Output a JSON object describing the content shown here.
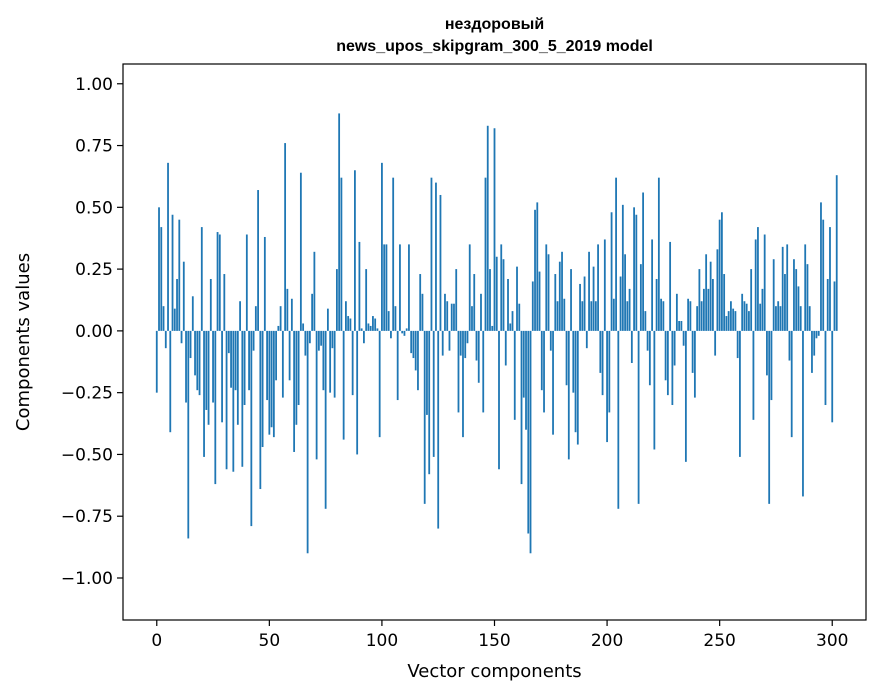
{
  "chart_data": {
    "type": "bar",
    "title_line1": "нездоровый",
    "title_line2": "news_upos_skipgram_300_5_2019 model",
    "xlabel": "Vector components",
    "ylabel": "Components values",
    "xlim": [
      -15,
      315
    ],
    "ylim": [
      -1.17,
      1.08
    ],
    "xticks": [
      0,
      50,
      100,
      150,
      200,
      250,
      300
    ],
    "yticks": [
      -1.0,
      -0.75,
      -0.5,
      -0.25,
      0.0,
      0.25,
      0.5,
      0.75,
      1.0
    ],
    "ytick_labels": [
      "−1.00",
      "−0.75",
      "−0.50",
      "−0.25",
      "0.00",
      "0.25",
      "0.50",
      "0.75",
      "1.00"
    ],
    "bar_color": "#1f77b4",
    "grid": false,
    "values": [
      -0.25,
      0.5,
      0.42,
      0.1,
      -0.07,
      0.68,
      -0.41,
      0.47,
      0.09,
      0.21,
      0.45,
      -0.05,
      0.28,
      -0.29,
      -0.84,
      -0.11,
      0.14,
      -0.18,
      -0.24,
      -0.26,
      0.42,
      -0.51,
      -0.32,
      -0.38,
      0.21,
      -0.29,
      -0.62,
      0.4,
      0.39,
      -0.37,
      0.23,
      -0.56,
      -0.09,
      -0.23,
      -0.57,
      -0.24,
      -0.38,
      0.12,
      -0.55,
      -0.3,
      0.39,
      -0.24,
      -0.79,
      -0.08,
      0.1,
      0.57,
      -0.64,
      -0.47,
      0.38,
      -0.28,
      -0.42,
      -0.39,
      -0.43,
      -0.2,
      0.02,
      0.1,
      -0.27,
      0.76,
      0.17,
      -0.2,
      0.13,
      -0.49,
      -0.38,
      -0.3,
      0.64,
      0.03,
      -0.1,
      -0.9,
      -0.05,
      0.15,
      0.32,
      -0.52,
      -0.08,
      -0.06,
      -0.24,
      -0.72,
      0.09,
      -0.25,
      -0.07,
      -0.27,
      0.25,
      0.88,
      0.62,
      -0.44,
      0.12,
      0.06,
      0.05,
      -0.26,
      0.65,
      -0.5,
      0.36,
      0.01,
      -0.05,
      0.25,
      0.03,
      0.02,
      0.06,
      0.05,
      0.01,
      -0.43,
      0.68,
      0.35,
      0.35,
      0.08,
      -0.03,
      0.62,
      0.1,
      -0.28,
      0.35,
      -0.01,
      -0.02,
      0.01,
      0.35,
      -0.09,
      -0.11,
      -0.16,
      -0.24,
      0.23,
      0.15,
      -0.7,
      -0.34,
      -0.58,
      0.62,
      -0.51,
      0.6,
      -0.8,
      0.55,
      -0.1,
      0.15,
      0.12,
      -0.08,
      0.11,
      0.11,
      0.25,
      -0.33,
      -0.1,
      -0.43,
      -0.11,
      -0.05,
      0.35,
      0.1,
      0.23,
      -0.12,
      -0.21,
      0.15,
      -0.33,
      0.62,
      0.83,
      0.25,
      0.02,
      0.82,
      0.3,
      -0.56,
      0.35,
      0.29,
      -0.14,
      0.21,
      0.03,
      0.08,
      -0.36,
      0.26,
      0.11,
      -0.62,
      -0.27,
      -0.4,
      -0.82,
      -0.9,
      0.2,
      0.49,
      0.52,
      0.24,
      -0.24,
      -0.33,
      0.35,
      0.31,
      -0.08,
      -0.42,
      0.23,
      0.12,
      0.28,
      0.32,
      0.13,
      -0.22,
      -0.52,
      0.25,
      -0.25,
      -0.41,
      -0.46,
      0.19,
      0.12,
      0.22,
      -0.07,
      0.32,
      0.12,
      0.26,
      0.12,
      0.35,
      -0.17,
      -0.26,
      0.37,
      -0.45,
      -0.33,
      0.48,
      0.13,
      0.62,
      -0.72,
      0.22,
      0.51,
      0.31,
      0.12,
      0.17,
      -0.13,
      0.5,
      0.47,
      -0.7,
      0.27,
      0.56,
      0.08,
      -0.08,
      -0.22,
      0.37,
      -0.48,
      0.21,
      0.62,
      0.13,
      0.12,
      -0.2,
      -0.26,
      0.36,
      -0.3,
      -0.14,
      0.15,
      0.04,
      0.04,
      -0.06,
      -0.53,
      0.13,
      0.12,
      -0.17,
      -0.27,
      0.1,
      0.25,
      0.12,
      0.17,
      0.31,
      0.17,
      0.28,
      0.21,
      -0.1,
      0.33,
      0.45,
      0.48,
      0.23,
      0.06,
      0.08,
      0.12,
      0.09,
      0.08,
      -0.11,
      -0.51,
      0.15,
      0.12,
      0.11,
      0.08,
      0.25,
      -0.36,
      0.37,
      0.42,
      0.11,
      0.17,
      0.39,
      -0.18,
      -0.7,
      -0.28,
      0.29,
      0.1,
      0.12,
      0.1,
      0.34,
      0.23,
      0.35,
      -0.12,
      -0.43,
      0.29,
      0.25,
      0.18,
      0.1,
      -0.67,
      0.35,
      0.27,
      0.1,
      -0.17,
      -0.1,
      -0.03,
      -0.02,
      0.52,
      0.45,
      -0.3,
      0.21,
      0.42,
      -0.37,
      0.2,
      0.63
    ]
  }
}
